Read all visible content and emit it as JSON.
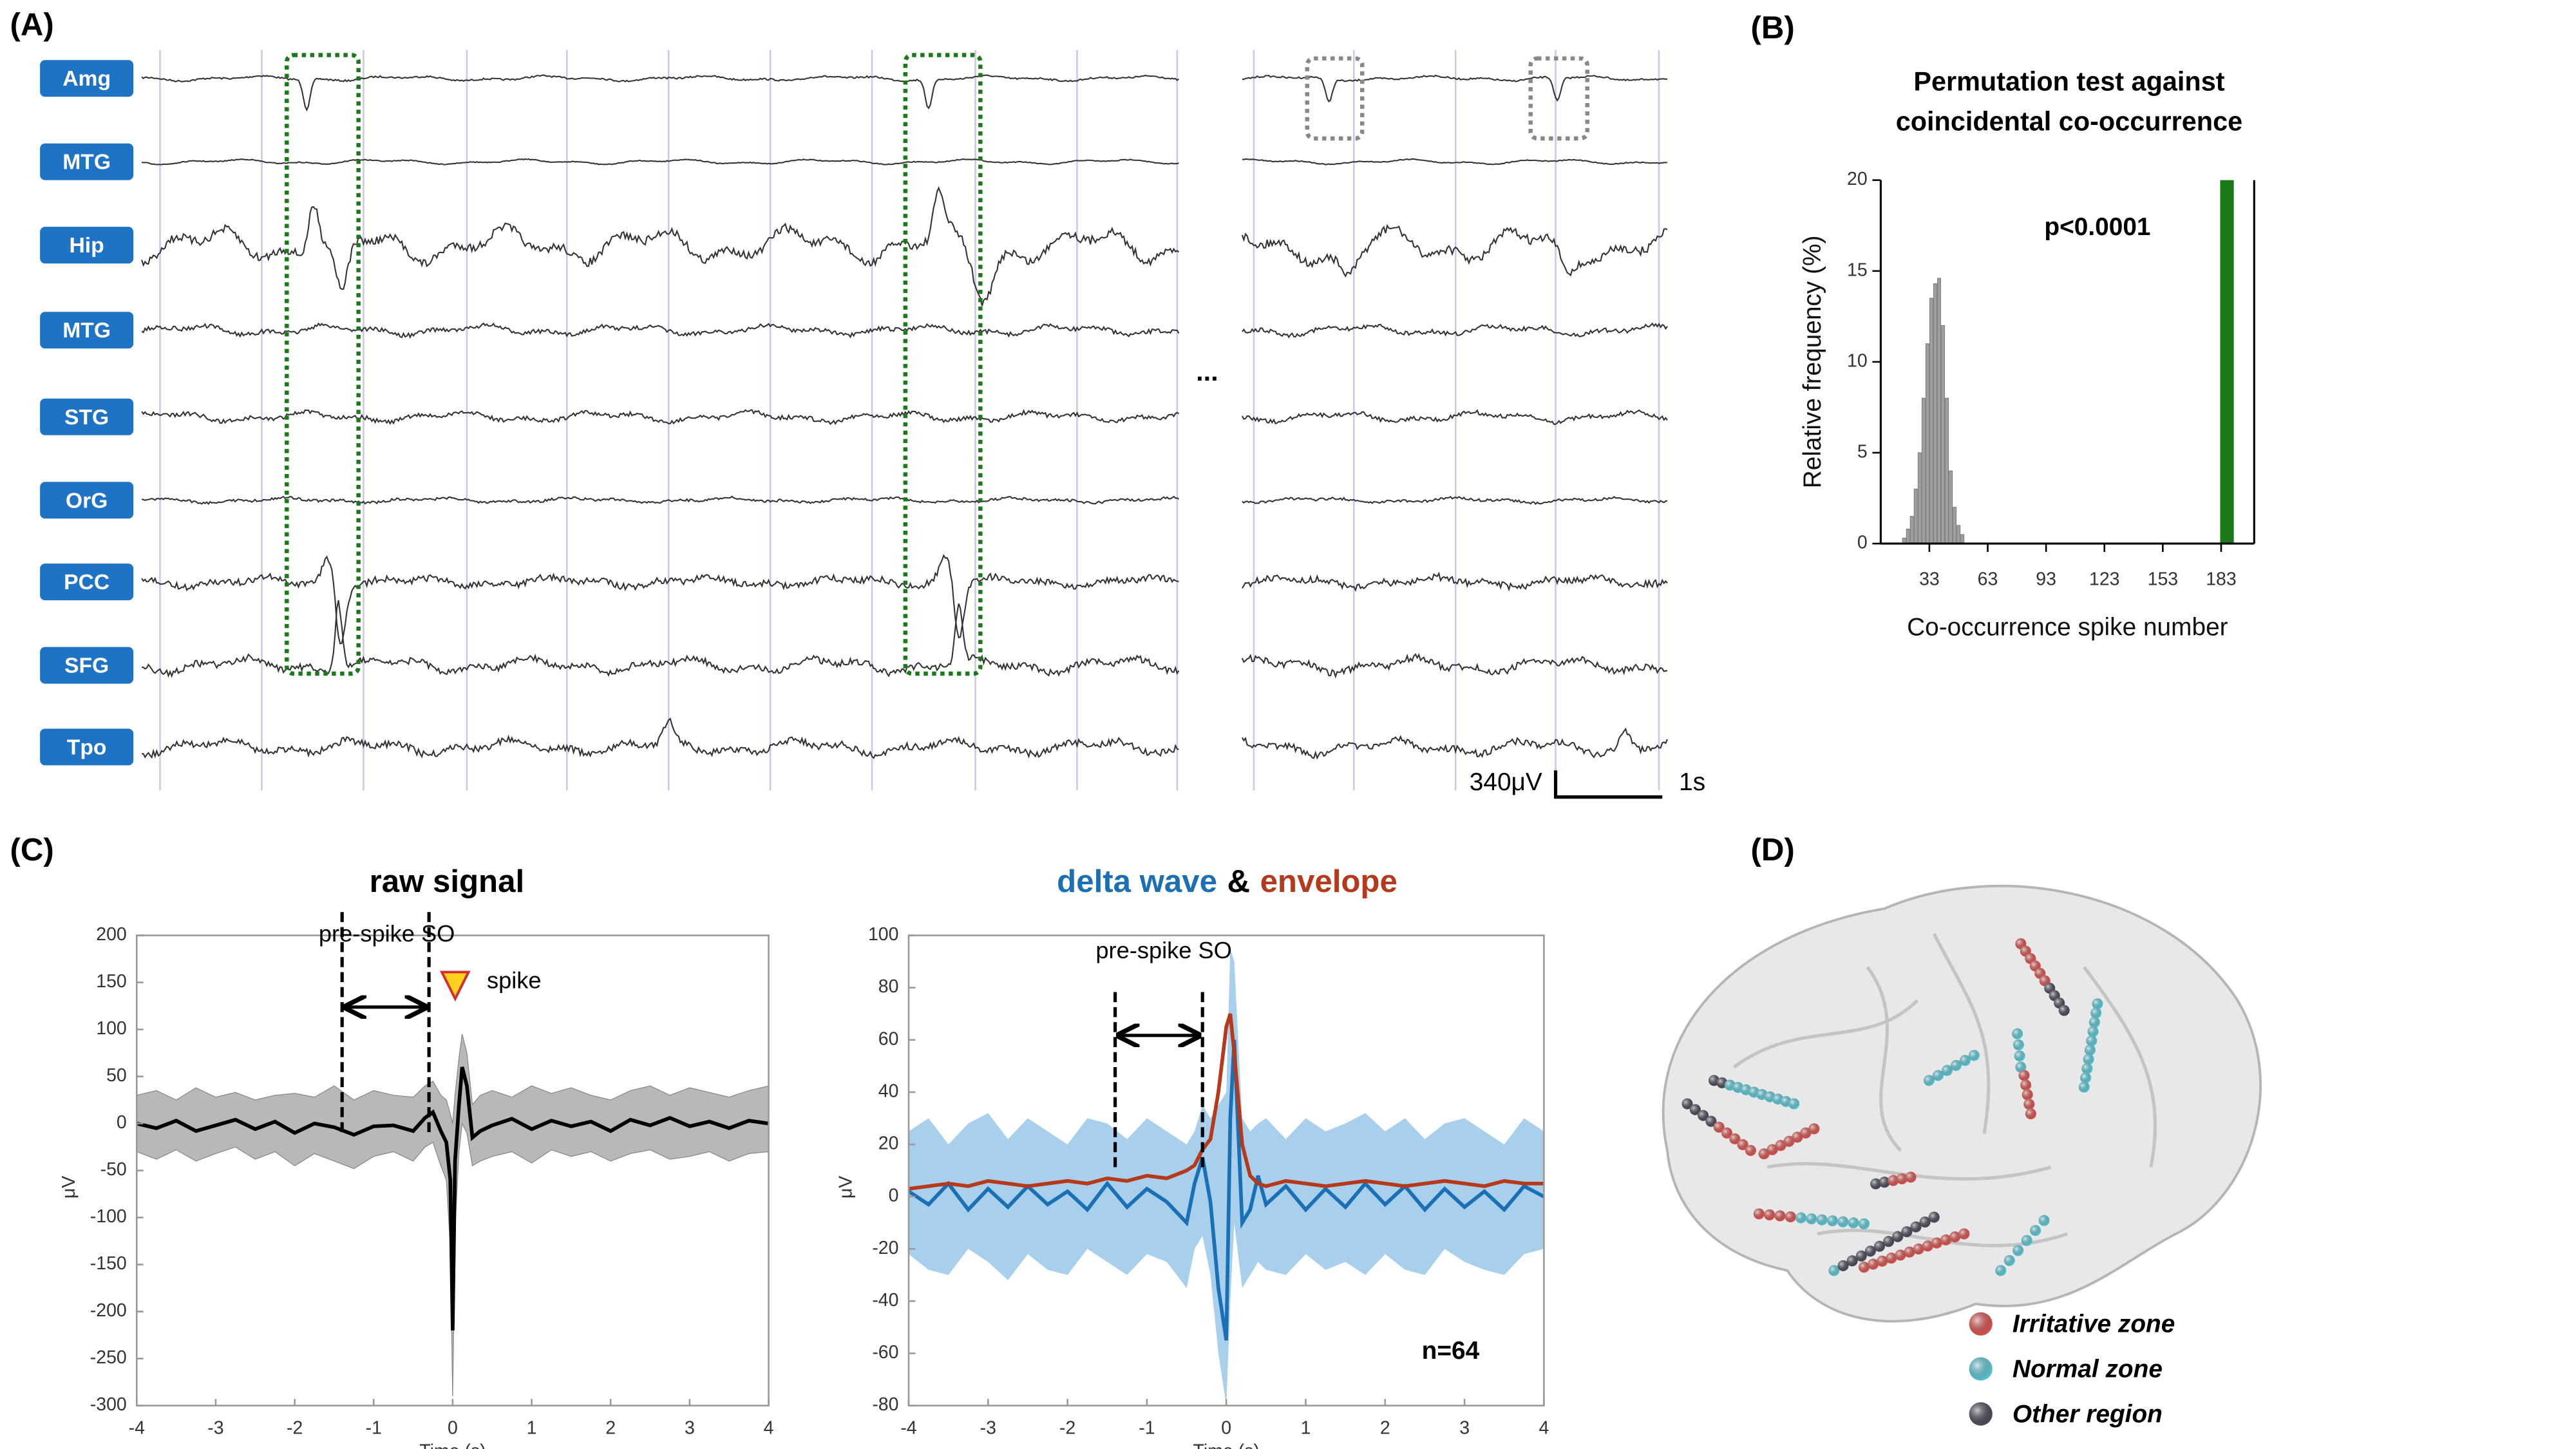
{
  "panels": [
    "(A)",
    "(B)",
    "(C)",
    "(D)"
  ],
  "eeg": {
    "channels": [
      "Amg",
      "MTG",
      "Hip",
      "MTG",
      "STG",
      "OrG",
      "PCC",
      "SFG",
      "Tpo"
    ],
    "ellipsis": "...",
    "scale_amplitude": "340μV",
    "scale_time": "1s"
  },
  "brain": {
    "legend": [
      {
        "label": "Irritative zone",
        "color": "#d9534f"
      },
      {
        "label": "Normal zone",
        "color": "#5bc8d6"
      },
      {
        "label": "Other region",
        "color": "#4a4a5a"
      }
    ]
  },
  "chart_data": [
    {
      "type": "histogram",
      "title": [
        "Permutation test against",
        "coincidental co-occurrence"
      ],
      "xlabel": "Co-occurrence spike number",
      "ylabel": "Relative frequency (%)",
      "annotation": "p<0.0001",
      "xlim": [
        8,
        200
      ],
      "ylim": [
        0,
        20
      ],
      "xticks": [
        33,
        63,
        93,
        123,
        153,
        183
      ],
      "yticks": [
        0,
        5,
        10,
        15,
        20
      ],
      "series": [
        {
          "color": "#a0a0a0",
          "x": [
            20,
            22,
            24,
            26,
            28,
            30,
            32,
            34,
            36,
            38,
            40,
            42,
            44,
            46,
            48,
            50
          ],
          "values": [
            0.3,
            0.8,
            1.5,
            3,
            5,
            8,
            11,
            13.5,
            14.3,
            14.6,
            12,
            8,
            4,
            2,
            1,
            0.5
          ]
        },
        {
          "color": "#1a7a1a",
          "x": [
            186
          ],
          "values": [
            20
          ]
        }
      ]
    },
    {
      "type": "line",
      "title": "raw signal",
      "xlabel": "Time (s)",
      "ylabel": "μV",
      "so_label": "pre-spike SO",
      "spike_label": "spike",
      "so_window": [
        -1.4,
        -0.3
      ],
      "xlim": [
        -4,
        4
      ],
      "ylim": [
        -300,
        200
      ],
      "xticks": [
        -4,
        -3,
        -2,
        -1,
        0,
        1,
        2,
        3,
        4
      ],
      "yticks": [
        -300,
        -250,
        -200,
        -150,
        -100,
        -50,
        0,
        50,
        100,
        150,
        200
      ],
      "x": [
        -4,
        -3.75,
        -3.5,
        -3.25,
        -3,
        -2.75,
        -2.5,
        -2.25,
        -2,
        -1.75,
        -1.5,
        -1.25,
        -1,
        -0.75,
        -0.5,
        -0.35,
        -0.25,
        -0.15,
        -0.08,
        -0.03,
        0,
        0.03,
        0.08,
        0.12,
        0.18,
        0.25,
        0.35,
        0.5,
        0.75,
        1,
        1.25,
        1.5,
        1.75,
        2,
        2.25,
        2.5,
        2.75,
        3,
        3.25,
        3.5,
        3.75,
        4
      ],
      "series": [
        {
          "color": "#000000",
          "values": [
            0,
            -5,
            3,
            -8,
            -2,
            4,
            -6,
            2,
            -10,
            0,
            -4,
            -12,
            -3,
            -2,
            -8,
            6,
            12,
            -8,
            -20,
            -60,
            -220,
            -40,
            20,
            60,
            40,
            -15,
            -8,
            -2,
            5,
            -6,
            3,
            -3,
            2,
            -8,
            4,
            -2,
            6,
            -3,
            2,
            -5,
            3,
            0
          ]
        }
      ],
      "band": {
        "color": "#b8b8b8",
        "upper": [
          30,
          35,
          25,
          38,
          28,
          33,
          25,
          30,
          32,
          28,
          40,
          25,
          35,
          30,
          28,
          40,
          45,
          30,
          25,
          10,
          0,
          30,
          70,
          95,
          75,
          20,
          30,
          35,
          28,
          40,
          32,
          38,
          30,
          25,
          35,
          40,
          30,
          38,
          33,
          28,
          35,
          40
        ],
        "lower": [
          -30,
          -38,
          -28,
          -40,
          -32,
          -25,
          -38,
          -30,
          -45,
          -32,
          -40,
          -48,
          -35,
          -30,
          -40,
          -25,
          -20,
          -45,
          -60,
          -130,
          -290,
          -110,
          -30,
          0,
          -10,
          -45,
          -40,
          -35,
          -30,
          -42,
          -28,
          -35,
          -30,
          -40,
          -32,
          -28,
          -38,
          -35,
          -30,
          -40,
          -32,
          -30
        ]
      }
    },
    {
      "type": "line",
      "title": [
        {
          "text": "delta wave",
          "color": "#1a6fb5"
        },
        {
          "text": "&",
          "color": "#000000"
        },
        {
          "text": "envelope",
          "color": "#b5391a"
        }
      ],
      "xlabel": "Time (s)",
      "ylabel": "μV",
      "so_label": "pre-spike SO",
      "n_label": "n=64",
      "so_window": [
        -1.4,
        -0.3
      ],
      "xlim": [
        -4,
        4
      ],
      "ylim": [
        -80,
        100
      ],
      "xticks": [
        -4,
        -3,
        -2,
        -1,
        0,
        1,
        2,
        3,
        4
      ],
      "yticks": [
        -80,
        -60,
        -40,
        -20,
        0,
        20,
        40,
        60,
        80,
        100
      ],
      "x": [
        -4,
        -3.75,
        -3.5,
        -3.25,
        -3,
        -2.75,
        -2.5,
        -2.25,
        -2,
        -1.75,
        -1.5,
        -1.25,
        -1,
        -0.75,
        -0.5,
        -0.4,
        -0.3,
        -0.2,
        -0.1,
        0,
        0.05,
        0.1,
        0.2,
        0.3,
        0.4,
        0.5,
        0.75,
        1,
        1.25,
        1.5,
        1.75,
        2,
        2.25,
        2.5,
        2.75,
        3,
        3.25,
        3.5,
        3.75,
        4
      ],
      "series": [
        {
          "color": "#1a6fb5",
          "values": [
            2,
            -3,
            5,
            -5,
            3,
            -4,
            4,
            -3,
            2,
            -5,
            5,
            -4,
            3,
            -2,
            -10,
            5,
            15,
            -2,
            -35,
            -55,
            30,
            60,
            -10,
            -5,
            8,
            -3,
            4,
            -5,
            3,
            -4,
            5,
            -3,
            4,
            -5,
            3,
            -4,
            2,
            -5,
            4,
            0
          ]
        },
        {
          "color": "#b5391a",
          "values": [
            3,
            4,
            5,
            4,
            6,
            5,
            4,
            5,
            6,
            5,
            7,
            6,
            8,
            7,
            10,
            12,
            18,
            22,
            40,
            65,
            70,
            55,
            20,
            8,
            5,
            4,
            6,
            5,
            4,
            5,
            6,
            5,
            4,
            5,
            6,
            5,
            4,
            6,
            5,
            5
          ]
        }
      ],
      "band": {
        "color": "#a8d0ec",
        "upper": [
          25,
          30,
          20,
          28,
          32,
          22,
          30,
          25,
          20,
          30,
          28,
          22,
          30,
          25,
          20,
          25,
          35,
          30,
          35,
          40,
          95,
          90,
          30,
          25,
          28,
          30,
          22,
          30,
          25,
          28,
          32,
          25,
          30,
          22,
          28,
          30,
          25,
          20,
          30,
          25
        ],
        "lower": [
          -22,
          -28,
          -30,
          -20,
          -25,
          -32,
          -22,
          -28,
          -30,
          -20,
          -25,
          -30,
          -22,
          -25,
          -35,
          -20,
          -15,
          -30,
          -60,
          -80,
          -40,
          -10,
          -35,
          -30,
          -25,
          -28,
          -30,
          -22,
          -28,
          -25,
          -30,
          -22,
          -28,
          -30,
          -20,
          -25,
          -28,
          -30,
          -22,
          -20
        ]
      }
    }
  ]
}
